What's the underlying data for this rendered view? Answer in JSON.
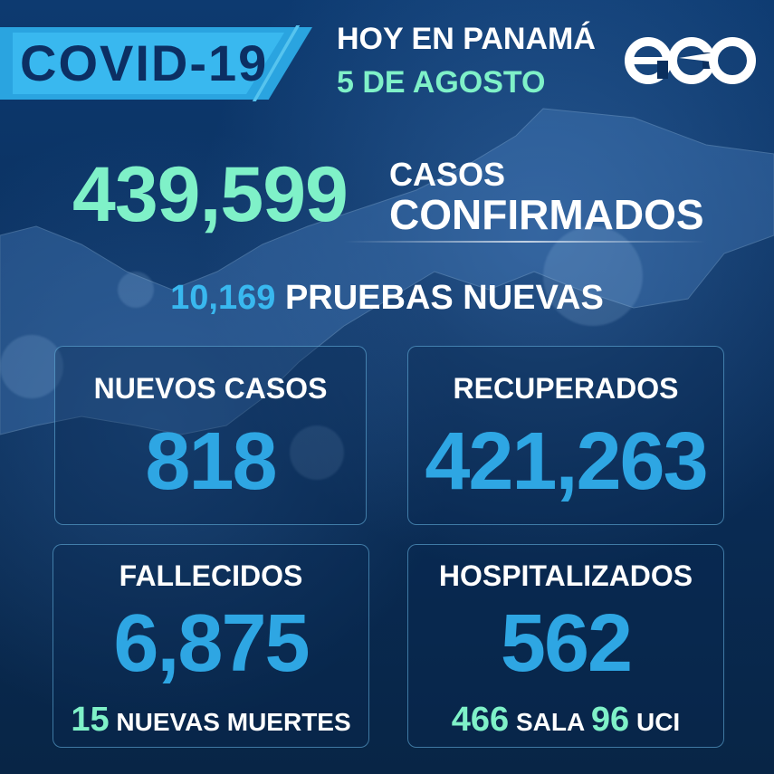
{
  "header": {
    "title": "COVID-19",
    "subtitle_line1": "HOY EN PANAMÁ",
    "subtitle_line2": "5 DE AGOSTO",
    "logo_icon": "eco-logo-icon"
  },
  "confirmed": {
    "value": "439,599",
    "label_line1": "CASOS",
    "label_line2": "CONFIRMADOS"
  },
  "tests": {
    "value": "10,169",
    "label": "PRUEBAS NUEVAS"
  },
  "cards": {
    "new_cases": {
      "label": "NUEVOS CASOS",
      "value": "818"
    },
    "recovered": {
      "label": "RECUPERADOS",
      "value": "421,263"
    },
    "deaths": {
      "label": "FALLECIDOS",
      "value": "6,875",
      "sub_value": "15",
      "sub_label": "NUEVAS MUERTES"
    },
    "hospitalized": {
      "label": "HOSPITALIZADOS",
      "value": "562",
      "ward_value": "466",
      "ward_label": "SALA",
      "icu_value": "96",
      "icu_label": "UCI"
    }
  },
  "colors": {
    "background": "#0b2f5e",
    "accent_blue": "#2ea6e3",
    "accent_green": "#7ff1c8",
    "tag_blue": "#39b8ef"
  }
}
